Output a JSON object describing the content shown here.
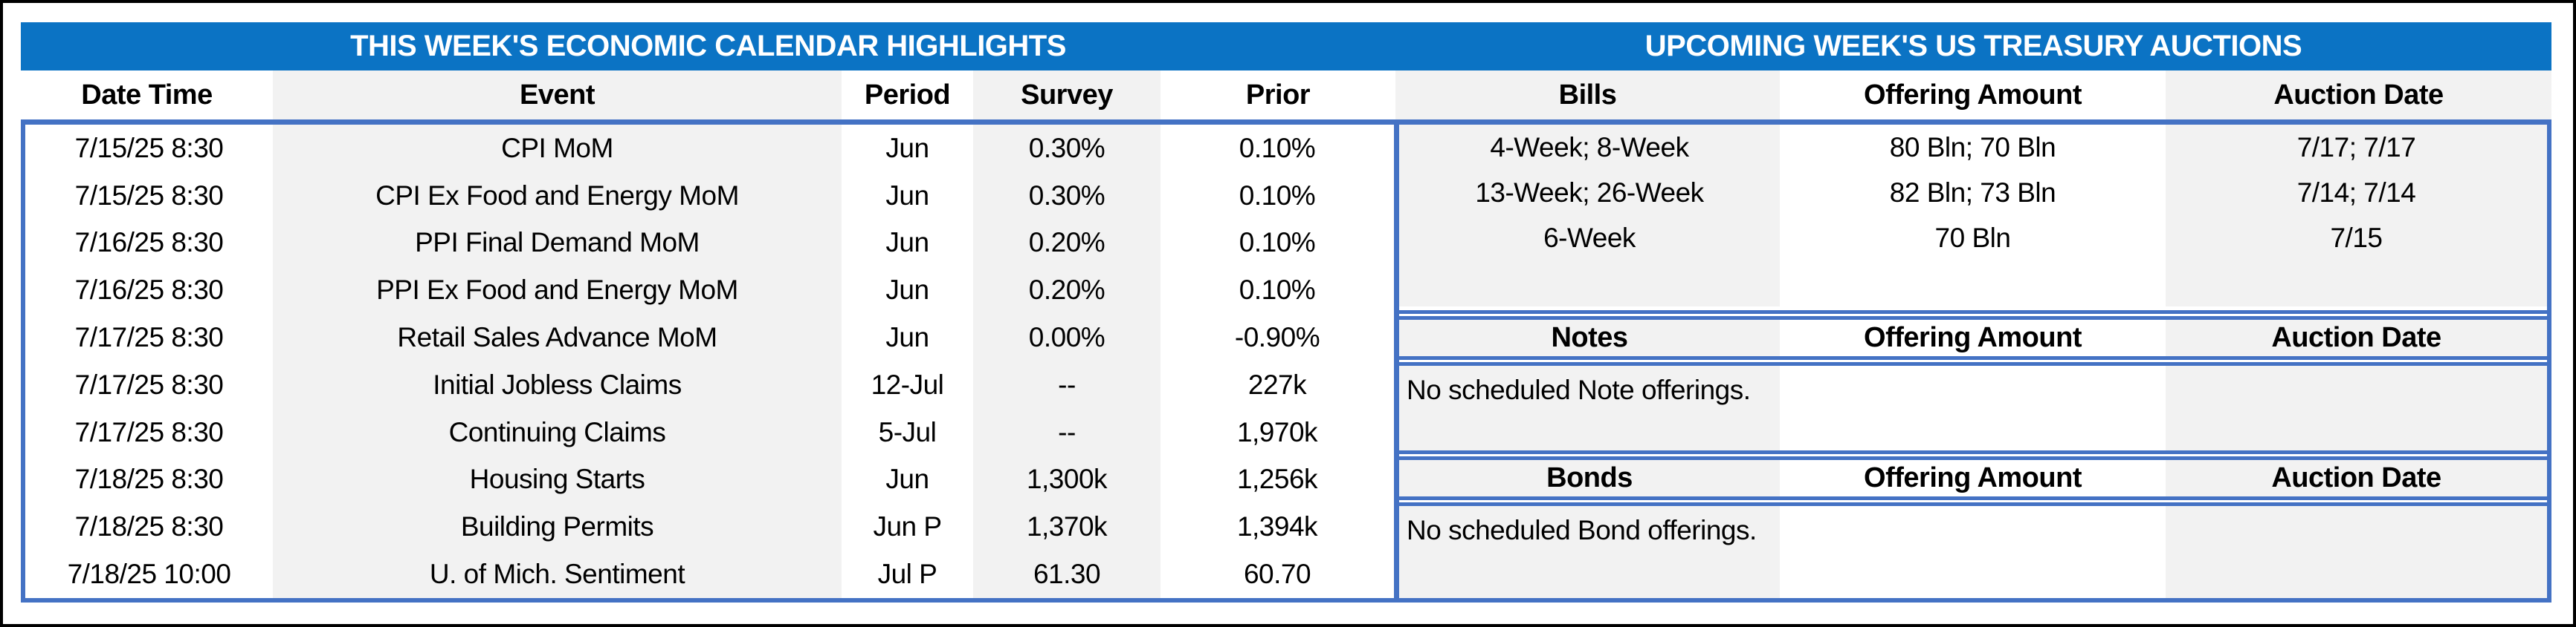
{
  "colors": {
    "title_band": "#0B73C4",
    "border_blue": "#4472C4",
    "stripe_grey": "#F2F2F2",
    "frame_black": "#000000",
    "title_text": "#FFFFFF",
    "body_text": "#000000"
  },
  "calendar": {
    "title": "THIS WEEK'S ECONOMIC CALENDAR HIGHLIGHTS",
    "columns": [
      "Date Time",
      "Event",
      "Period",
      "Survey",
      "Prior"
    ],
    "rows": [
      {
        "date_time": "7/15/25 8:30",
        "event": "CPI MoM",
        "period": "Jun",
        "survey": "0.30%",
        "prior": "0.10%"
      },
      {
        "date_time": "7/15/25 8:30",
        "event": "CPI Ex Food and Energy MoM",
        "period": "Jun",
        "survey": "0.30%",
        "prior": "0.10%"
      },
      {
        "date_time": "7/16/25 8:30",
        "event": "PPI Final Demand MoM",
        "period": "Jun",
        "survey": "0.20%",
        "prior": "0.10%"
      },
      {
        "date_time": "7/16/25 8:30",
        "event": "PPI Ex Food and Energy MoM",
        "period": "Jun",
        "survey": "0.20%",
        "prior": "0.10%"
      },
      {
        "date_time": "7/17/25 8:30",
        "event": "Retail Sales Advance MoM",
        "period": "Jun",
        "survey": "0.00%",
        "prior": "-0.90%"
      },
      {
        "date_time": "7/17/25 8:30",
        "event": "Initial Jobless Claims",
        "period": "12-Jul",
        "survey": "--",
        "prior": "227k"
      },
      {
        "date_time": "7/17/25 8:30",
        "event": "Continuing Claims",
        "period": "5-Jul",
        "survey": "--",
        "prior": "1,970k"
      },
      {
        "date_time": "7/18/25 8:30",
        "event": "Housing Starts",
        "period": "Jun",
        "survey": "1,300k",
        "prior": "1,256k"
      },
      {
        "date_time": "7/18/25 8:30",
        "event": "Building Permits",
        "period": "Jun P",
        "survey": "1,370k",
        "prior": "1,394k"
      },
      {
        "date_time": "7/18/25 10:00",
        "event": "U. of Mich. Sentiment",
        "period": "Jul P",
        "survey": "61.30",
        "prior": "60.70"
      }
    ]
  },
  "auctions": {
    "title": "UPCOMING WEEK'S US TREASURY AUCTIONS",
    "bills": {
      "columns": [
        "Bills",
        "Offering Amount",
        "Auction Date"
      ],
      "rows": [
        {
          "security": "4-Week; 8-Week",
          "offering_amount": "80 Bln; 70 Bln",
          "auction_date": "7/17; 7/17"
        },
        {
          "security": "13-Week; 26-Week",
          "offering_amount": "82 Bln; 73 Bln",
          "auction_date": "7/14; 7/14"
        },
        {
          "security": "6-Week",
          "offering_amount": "70 Bln",
          "auction_date": "7/15"
        }
      ]
    },
    "notes": {
      "columns": [
        "Notes",
        "Offering Amount",
        "Auction Date"
      ],
      "message": "No scheduled Note offerings."
    },
    "bonds": {
      "columns": [
        "Bonds",
        "Offering Amount",
        "Auction Date"
      ],
      "message": "No scheduled Bond offerings."
    }
  }
}
